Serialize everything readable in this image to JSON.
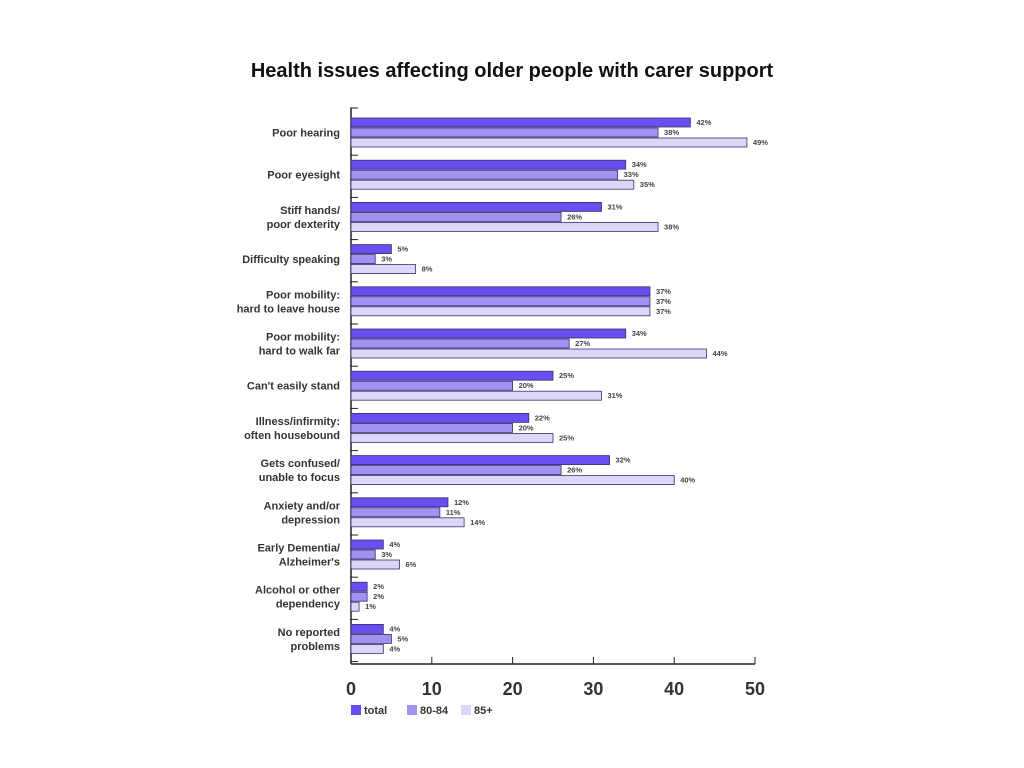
{
  "chart_data": {
    "type": "bar",
    "orientation": "horizontal",
    "title": "Health issues affecting older people with carer support",
    "categories": [
      [
        "Poor hearing"
      ],
      [
        "Poor eyesight"
      ],
      [
        "Stiff hands/",
        "poor dexterity"
      ],
      [
        "Difficulty speaking"
      ],
      [
        "Poor mobility:",
        "hard to leave house"
      ],
      [
        "Poor mobility:",
        "hard to walk far"
      ],
      [
        "Can't easily stand"
      ],
      [
        "Illness/infirmity:",
        "often housebound"
      ],
      [
        "Gets confused/",
        "unable to focus"
      ],
      [
        "Anxiety and/or",
        "depression"
      ],
      [
        "Early Dementia/",
        "Alzheimer's"
      ],
      [
        "Alcohol or other",
        "dependency"
      ],
      [
        "No reported",
        "problems"
      ]
    ],
    "series": [
      {
        "name": "total",
        "color": "#6a4ff0",
        "values": [
          42,
          34,
          31,
          5,
          37,
          34,
          25,
          22,
          32,
          12,
          4,
          2,
          4
        ]
      },
      {
        "name": "80-84",
        "color": "#a391f2",
        "values": [
          38,
          33,
          26,
          3,
          37,
          27,
          20,
          20,
          26,
          11,
          3,
          2,
          5
        ]
      },
      {
        "name": "85+",
        "color": "#dcd6f8",
        "values": [
          49,
          35,
          38,
          8,
          37,
          44,
          31,
          25,
          40,
          14,
          6,
          1,
          4
        ]
      }
    ],
    "value_suffix": "%",
    "xlim": [
      0,
      50
    ],
    "xticks": [
      "0",
      "10",
      "20",
      "30",
      "40",
      "50"
    ],
    "grid": false,
    "legend": "bottom-left"
  }
}
